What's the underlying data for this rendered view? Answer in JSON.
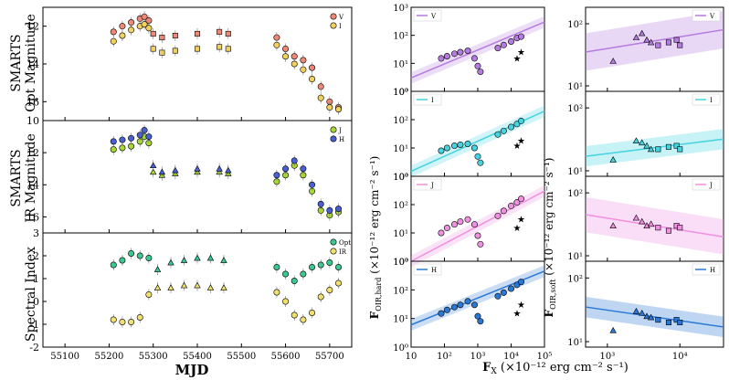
{
  "figure": {
    "left_x_axis": {
      "label": "MJD",
      "ticks": [
        55100,
        55200,
        55300,
        55400,
        55500,
        55600,
        55700
      ]
    },
    "right_x_axis": {
      "label": "F",
      "label_sub": "X",
      "label_rest": " (×10⁻¹² erg cm⁻² s⁻¹)",
      "mid_ticks": [
        "10",
        "10²",
        "10³",
        "10⁴",
        "10⁵"
      ],
      "soft_ticks": [
        "10³",
        "10⁴"
      ]
    },
    "hard_ylabel": "F",
    "hard_ylabel_sub": "OIR,hard",
    "hard_ylabel_rest": " (×10⁻¹² erg cm⁻² s⁻¹)",
    "soft_ylabel": "F",
    "soft_ylabel_sub": "OIR,soft",
    "soft_ylabel_rest": " (×10⁻¹² erg cm⁻² s⁻¹)",
    "colors": {
      "V": "#b57be0",
      "I": "#45d3e0",
      "J": "#f090e0",
      "H": "#2a78d6",
      "opt_pts": "#f08878",
      "ir_pts": "#f0d060",
      "J_pts": "#a8d838",
      "H_pts": "#4860d0",
      "spec_opt": "#3cc890",
      "spec_ir": "#f0e070"
    }
  },
  "chart_data": [
    {
      "type": "scatter",
      "panel": "opt-magnitude",
      "ylabel_line1": "SMARTS",
      "ylabel_line2": "Opt Magnitude",
      "ylim": [
        17,
        11
      ],
      "yticks": [
        12,
        14,
        16
      ],
      "legend": [
        "V",
        "I"
      ],
      "series": [
        {
          "name": "V",
          "x": [
            55210,
            55230,
            55250,
            55270,
            55280,
            55290,
            55300,
            55320,
            55350,
            55400,
            55450,
            55470,
            55580,
            55600,
            55620,
            55640,
            55660,
            55680,
            55700,
            55720
          ],
          "values": [
            12.3,
            12.0,
            11.8,
            11.6,
            11.5,
            11.7,
            12.4,
            12.6,
            12.5,
            12.4,
            12.3,
            12.4,
            12.6,
            13.2,
            13.6,
            13.8,
            14.2,
            15.2,
            16.0,
            16.3
          ]
        },
        {
          "name": "I",
          "x": [
            55210,
            55230,
            55250,
            55270,
            55280,
            55290,
            55300,
            55320,
            55350,
            55400,
            55450,
            55470,
            55580,
            55600,
            55620,
            55640,
            55660,
            55680,
            55700,
            55720
          ],
          "values": [
            12.8,
            12.5,
            12.2,
            12.0,
            11.9,
            12.1,
            13.2,
            13.4,
            13.3,
            13.2,
            13.1,
            13.2,
            13.0,
            13.6,
            14.0,
            14.3,
            14.8,
            15.8,
            16.3,
            16.4
          ]
        }
      ]
    },
    {
      "type": "scatter",
      "panel": "ir-magnitude",
      "ylabel_line1": "SMARTS",
      "ylabel_line2": "IR Magnitude",
      "ylim": [
        17,
        10
      ],
      "yticks": [
        10,
        12,
        14,
        16
      ],
      "legend": [
        "J",
        "H"
      ],
      "series": [
        {
          "name": "J",
          "x": [
            55210,
            55230,
            55250,
            55270,
            55280,
            55290,
            55300,
            55320,
            55350,
            55400,
            55450,
            55470,
            55580,
            55600,
            55620,
            55640,
            55660,
            55680,
            55700,
            55720
          ],
          "values": [
            11.8,
            11.7,
            11.6,
            11.3,
            11.0,
            11.4,
            13.2,
            13.4,
            13.3,
            13.2,
            13.2,
            13.3,
            13.8,
            13.4,
            12.8,
            13.4,
            14.4,
            15.6,
            15.9,
            15.7
          ]
        },
        {
          "name": "H",
          "x": [
            55210,
            55230,
            55250,
            55270,
            55280,
            55290,
            55300,
            55320,
            55350,
            55400,
            55450,
            55470,
            55580,
            55600,
            55620,
            55640,
            55660,
            55680,
            55700,
            55720
          ],
          "values": [
            11.3,
            11.2,
            11.1,
            10.9,
            10.6,
            11.0,
            12.8,
            13.2,
            13.1,
            13.0,
            13.0,
            13.1,
            13.4,
            13.0,
            12.5,
            13.0,
            14.0,
            15.2,
            15.6,
            15.5
          ]
        }
      ]
    },
    {
      "type": "scatter",
      "panel": "spectral-index",
      "ylabel": "Spectral Index",
      "ylim": [
        -2,
        3
      ],
      "yticks": [
        -2,
        -1,
        0,
        1,
        2,
        3
      ],
      "legend": [
        "Opt",
        "IR"
      ],
      "series": [
        {
          "name": "Opt",
          "x": [
            55210,
            55230,
            55250,
            55270,
            55290,
            55310,
            55340,
            55370,
            55400,
            55430,
            55460,
            55580,
            55600,
            55620,
            55640,
            55660,
            55680,
            55700,
            55720
          ],
          "values": [
            1.6,
            1.8,
            2.1,
            2.0,
            1.9,
            1.4,
            1.7,
            1.8,
            1.9,
            1.9,
            1.8,
            1.5,
            1.2,
            0.9,
            1.2,
            1.5,
            1.6,
            1.7,
            1.5
          ]
        },
        {
          "name": "IR",
          "x": [
            55210,
            55230,
            55250,
            55270,
            55290,
            55310,
            55340,
            55370,
            55400,
            55430,
            55460,
            55580,
            55600,
            55620,
            55640,
            55660,
            55680,
            55700,
            55720
          ],
          "values": [
            -0.8,
            -0.9,
            -0.9,
            -0.7,
            0.3,
            0.6,
            0.6,
            0.7,
            0.7,
            0.6,
            0.6,
            0.4,
            0.0,
            -0.6,
            -0.8,
            -0.5,
            0.2,
            0.5,
            0.8
          ]
        }
      ]
    },
    {
      "type": "scatter",
      "panel": "hard-V",
      "band": "V",
      "xlim": [
        10,
        100000
      ],
      "ylim": [
        1,
        1000
      ],
      "fit": [
        [
          10,
          3
        ],
        [
          100000,
          300
        ]
      ],
      "points": [
        [
          80,
          15
        ],
        [
          120,
          18
        ],
        [
          200,
          22
        ],
        [
          300,
          25
        ],
        [
          500,
          28
        ],
        [
          800,
          15
        ],
        [
          1000,
          8
        ],
        [
          1200,
          5
        ],
        [
          4000,
          35
        ],
        [
          6000,
          45
        ],
        [
          10000,
          60
        ],
        [
          15000,
          80
        ],
        [
          20000,
          90
        ],
        [
          15000,
          15
        ],
        [
          20000,
          25
        ]
      ]
    },
    {
      "type": "scatter",
      "panel": "hard-I",
      "band": "I",
      "xlim": [
        10,
        100000
      ],
      "ylim": [
        1,
        1000
      ],
      "fit": [
        [
          10,
          1.5
        ],
        [
          100000,
          200
        ]
      ],
      "points": [
        [
          80,
          8
        ],
        [
          120,
          10
        ],
        [
          200,
          12
        ],
        [
          300,
          13
        ],
        [
          500,
          14
        ],
        [
          800,
          10
        ],
        [
          1000,
          5
        ],
        [
          1200,
          3
        ],
        [
          4000,
          30
        ],
        [
          6000,
          40
        ],
        [
          10000,
          55
        ],
        [
          15000,
          70
        ],
        [
          20000,
          90
        ],
        [
          15000,
          12
        ],
        [
          20000,
          18
        ]
      ]
    },
    {
      "type": "scatter",
      "panel": "hard-J",
      "band": "J",
      "xlim": [
        10,
        100000
      ],
      "ylim": [
        1,
        1000
      ],
      "fit": [
        [
          10,
          1.0
        ],
        [
          100000,
          300
        ]
      ],
      "points": [
        [
          80,
          10
        ],
        [
          120,
          15
        ],
        [
          200,
          20
        ],
        [
          300,
          25
        ],
        [
          500,
          30
        ],
        [
          800,
          20
        ],
        [
          1000,
          8
        ],
        [
          1200,
          4
        ],
        [
          4000,
          40
        ],
        [
          6000,
          60
        ],
        [
          10000,
          90
        ],
        [
          15000,
          120
        ],
        [
          20000,
          160
        ],
        [
          15000,
          15
        ],
        [
          20000,
          30
        ]
      ]
    },
    {
      "type": "scatter",
      "panel": "hard-H",
      "band": "H",
      "xlim": [
        10,
        100000
      ],
      "ylim": [
        1,
        1000
      ],
      "fit": [
        [
          10,
          6
        ],
        [
          100000,
          450
        ]
      ],
      "points": [
        [
          80,
          15
        ],
        [
          120,
          20
        ],
        [
          200,
          25
        ],
        [
          300,
          30
        ],
        [
          500,
          40
        ],
        [
          800,
          30
        ],
        [
          1000,
          12
        ],
        [
          1200,
          8
        ],
        [
          4000,
          60
        ],
        [
          6000,
          80
        ],
        [
          10000,
          110
        ],
        [
          15000,
          150
        ],
        [
          20000,
          190
        ],
        [
          15000,
          15
        ],
        [
          20000,
          30
        ]
      ]
    },
    {
      "type": "scatter",
      "panel": "soft-V",
      "band": "V",
      "xlim": [
        500,
        40000
      ],
      "ylim": [
        1,
        200
      ],
      "fit": [
        [
          500,
          35
        ],
        [
          40000,
          80
        ]
      ],
      "points": [
        [
          1200,
          25
        ],
        [
          2500,
          60
        ],
        [
          3000,
          70
        ],
        [
          3500,
          55
        ],
        [
          4000,
          50
        ],
        [
          5000,
          45
        ],
        [
          7000,
          50
        ],
        [
          9000,
          55
        ],
        [
          10000,
          45
        ]
      ]
    },
    {
      "type": "scatter",
      "panel": "soft-I",
      "band": "I",
      "xlim": [
        500,
        40000
      ],
      "ylim": [
        1,
        200
      ],
      "fit": [
        [
          500,
          17
        ],
        [
          40000,
          32
        ]
      ],
      "points": [
        [
          1200,
          15
        ],
        [
          2500,
          30
        ],
        [
          3000,
          28
        ],
        [
          3500,
          25
        ],
        [
          4000,
          22
        ],
        [
          5000,
          22
        ],
        [
          7000,
          24
        ],
        [
          9000,
          25
        ],
        [
          10000,
          22
        ]
      ]
    },
    {
      "type": "scatter",
      "panel": "soft-J",
      "band": "J",
      "xlim": [
        500,
        40000
      ],
      "ylim": [
        1,
        200
      ],
      "fit": [
        [
          500,
          45
        ],
        [
          40000,
          20
        ]
      ],
      "points": [
        [
          1200,
          30
        ],
        [
          2500,
          40
        ],
        [
          3000,
          35
        ],
        [
          3500,
          30
        ],
        [
          4000,
          32
        ],
        [
          5000,
          28
        ],
        [
          7000,
          25
        ],
        [
          9000,
          30
        ],
        [
          10000,
          28
        ]
      ]
    },
    {
      "type": "scatter",
      "panel": "soft-H",
      "band": "H",
      "xlim": [
        500,
        40000
      ],
      "ylim": [
        1,
        200
      ],
      "fit": [
        [
          500,
          35
        ],
        [
          40000,
          17
        ]
      ],
      "points": [
        [
          1200,
          15
        ],
        [
          2500,
          30
        ],
        [
          3000,
          28
        ],
        [
          3500,
          25
        ],
        [
          4000,
          24
        ],
        [
          5000,
          22
        ],
        [
          7000,
          20
        ],
        [
          9000,
          22
        ],
        [
          10000,
          20
        ]
      ]
    }
  ]
}
